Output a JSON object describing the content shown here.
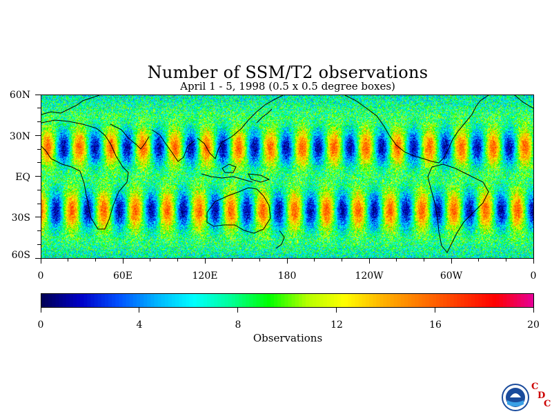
{
  "title": "Number of SSM/T2 observations",
  "subtitle": "April 1 - 5, 1998 (0.5 x 0.5 degree boxes)",
  "map": {
    "lat_labels": [
      "60N",
      "30N",
      "EQ",
      "30S",
      "60S"
    ],
    "lat_values": [
      60,
      30,
      0,
      -30,
      -60
    ],
    "lon_labels": [
      "0",
      "60E",
      "120E",
      "180",
      "120W",
      "60W",
      "0"
    ],
    "lon_values": [
      0,
      60,
      120,
      180,
      240,
      300,
      360
    ],
    "lat_range": [
      -60,
      60
    ],
    "lon_range": [
      0,
      360
    ]
  },
  "colorbar": {
    "title": "Observations",
    "ticks": [
      "0",
      "4",
      "8",
      "12",
      "16",
      "20"
    ],
    "tick_values": [
      0,
      4,
      8,
      12,
      16,
      20
    ],
    "range": [
      0,
      20
    ],
    "colors": [
      "#00005a",
      "#0000c8",
      "#0050ff",
      "#00b4ff",
      "#00ffff",
      "#00ff96",
      "#00ff00",
      "#b4ff00",
      "#ffff00",
      "#ffb400",
      "#ff7800",
      "#ff3c00",
      "#ff0000",
      "#e60096"
    ]
  },
  "logos": {
    "noaa": "NOAA",
    "cdc_letters": [
      "C",
      "D",
      "C"
    ]
  }
}
